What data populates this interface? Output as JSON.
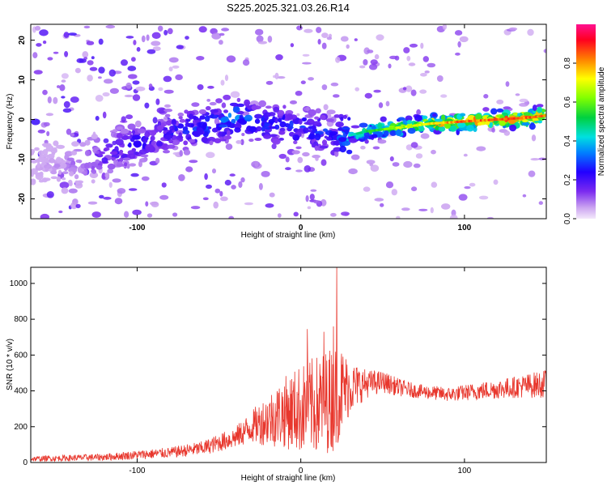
{
  "title": "S225.2025.321.03.26.R14",
  "chart_data": [
    {
      "type": "heatmap",
      "description_kind": "spectrogram",
      "xlabel": "Height of straight line (km)",
      "ylabel": "Frequency (Hz)",
      "xlim": [
        -165,
        150
      ],
      "ylim": [
        -25,
        24
      ],
      "xticks": [
        -100,
        0,
        100
      ],
      "yticks": [
        -20,
        -10,
        0,
        10,
        20
      ],
      "colorbar": {
        "label": "Normalized spectral amplitude",
        "range": [
          0.0,
          1.0
        ],
        "ticks": [
          0.0,
          0.2,
          0.4,
          0.6,
          0.8
        ]
      },
      "ridge": {
        "x": [
          -165,
          -140,
          -120,
          -100,
          -80,
          -60,
          -40,
          -20,
          0,
          20,
          30,
          40,
          60,
          80,
          100,
          120,
          140,
          150
        ],
        "y": [
          -12,
          -11,
          -9,
          -6,
          -3,
          -2,
          1,
          -1,
          -2,
          -4,
          -4,
          -3,
          -2,
          -1,
          -0.5,
          0,
          0.5,
          1
        ],
        "peak_amplitude": [
          0.05,
          0.1,
          0.2,
          0.25,
          0.25,
          0.3,
          0.35,
          0.3,
          0.3,
          0.3,
          0.45,
          0.55,
          0.7,
          0.8,
          0.9,
          0.9,
          0.9,
          0.9
        ]
      }
    },
    {
      "type": "line",
      "xlabel": "Height of straight line (km)",
      "ylabel": "SNR (10 * v/v)",
      "xlim": [
        -165,
        150
      ],
      "ylim": [
        0,
        1090
      ],
      "xticks": [
        -100,
        0,
        100
      ],
      "yticks": [
        0,
        200,
        400,
        600,
        800,
        1000
      ],
      "series": [
        {
          "name": "SNR",
          "color": "#e8372d",
          "envelope_x": [
            -165,
            -120,
            -80,
            -60,
            -40,
            -30,
            -20,
            -10,
            0,
            10,
            20,
            25,
            30,
            40,
            50,
            60,
            70,
            80,
            90,
            100,
            110,
            120,
            130,
            140,
            150
          ],
          "envelope_mean": [
            20,
            30,
            55,
            80,
            140,
            200,
            240,
            280,
            300,
            320,
            360,
            400,
            420,
            440,
            450,
            420,
            400,
            390,
            380,
            390,
            400,
            410,
            420,
            430,
            440
          ],
          "envelope_spread": [
            15,
            20,
            30,
            40,
            60,
            90,
            150,
            200,
            250,
            280,
            300,
            250,
            150,
            80,
            60,
            50,
            40,
            40,
            40,
            45,
            50,
            55,
            60,
            70,
            80
          ],
          "spikes": [
            {
              "x": 22,
              "y": 1090
            },
            {
              "x": 4,
              "y": 745
            },
            {
              "x": 14,
              "y": 730
            },
            {
              "x": 20,
              "y": 760
            }
          ]
        }
      ]
    }
  ]
}
